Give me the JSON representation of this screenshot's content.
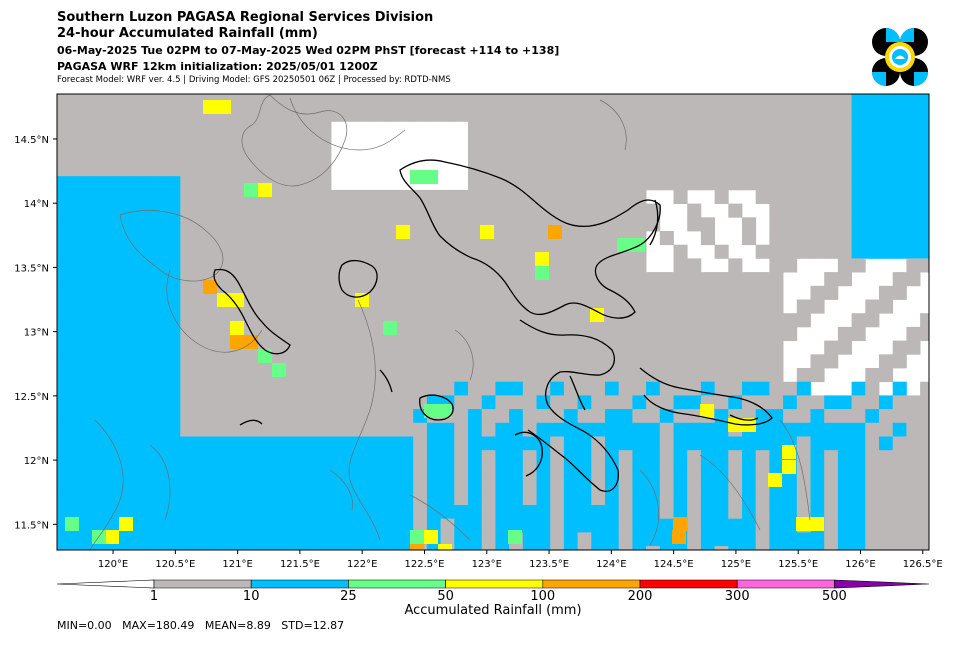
{
  "header": {
    "title": "Southern Luzon PAGASA Regional Services Division",
    "subtitle": "24-hour Accumulated Rainfall (mm)",
    "valid_period": "06-May-2025 Tue 02PM to 07-May-2025 Wed 02PM PhST [forecast +114 to +138]",
    "initialization": "PAGASA WRF 12km initialization: 2025/05/01 1200Z",
    "model_info": "Forecast Model: WRF ver. 4.5 | Driving Model: GFS 20250501 06Z | Processed by: RDTD-NMS"
  },
  "logo": {
    "icon": "pagasa-seal-icon",
    "colors": [
      "#000000",
      "#00bfff",
      "#ffd700"
    ]
  },
  "map": {
    "lon_ticks": [
      "120°E",
      "120.5°E",
      "121°E",
      "121.5°E",
      "122°E",
      "122.5°E",
      "123°E",
      "123.5°E",
      "124°E",
      "124.5°E",
      "125°E",
      "125.5°E",
      "126°E",
      "126.5°E"
    ],
    "lat_ticks": [
      "14.5°N",
      "14°N",
      "13.5°N",
      "13°N",
      "12.5°N",
      "12°N",
      "11.5°N"
    ],
    "lon_range": [
      119.55,
      126.55
    ],
    "lat_range": [
      11.3,
      14.85
    ]
  },
  "colorbar": {
    "label": "Accumulated Rainfall (mm)",
    "levels": [
      "1",
      "10",
      "25",
      "50",
      "100",
      "200",
      "300",
      "500"
    ],
    "colors": {
      "below": "#ffffff",
      "bins": [
        "#bdb8b8",
        "#00bfff",
        "#66ff88",
        "#ffff00",
        "#ffa500",
        "#ff0000",
        "#ff66dd",
        "#8800aa"
      ]
    }
  },
  "stats": "MIN=0.00   MAX=180.49   MEAN=8.89   STD=12.87"
}
